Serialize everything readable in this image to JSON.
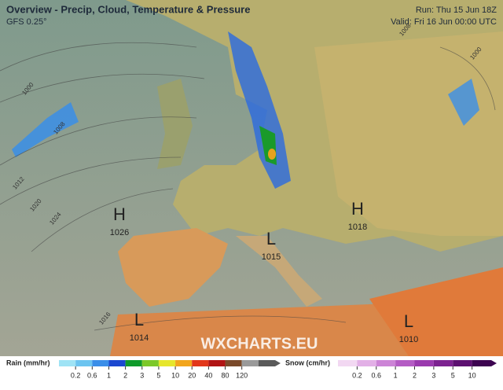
{
  "header": {
    "title": "Overview - Precip, Cloud, Temperature & Pressure",
    "model": "GFS 0.25°",
    "run": "Run: Thu 15 Jun 18Z",
    "valid": "Valid: Fri 16 Jun 00:00 UTC"
  },
  "pressure_centers": [
    {
      "label": "H",
      "value": 1026
    },
    {
      "label": "L",
      "value": 1015
    },
    {
      "label": "H",
      "value": 1018
    },
    {
      "label": "L",
      "value": 1014
    },
    {
      "label": "L",
      "value": 1010
    }
  ],
  "isobar_labels": [
    1000,
    1008,
    1012,
    1020,
    1024,
    1016,
    1000,
    1008
  ],
  "watermark": "WXCHARTS.EU",
  "legend": {
    "rain": {
      "title": "Rain (mm/hr)",
      "ticks": [
        0.2,
        0.6,
        1,
        2,
        3,
        5,
        10,
        20,
        40,
        80,
        120
      ],
      "colors": [
        "#9fe3f5",
        "#6cc4f0",
        "#3a8ee8",
        "#1b48d0",
        "#0f9a2a",
        "#7cc82a",
        "#e6e62c",
        "#f2a51c",
        "#e2371a",
        "#b01414",
        "#7a4a2a",
        "#9a9a9a",
        "#5a5a5a"
      ]
    },
    "snow": {
      "title": "Snow (cm/hr)",
      "ticks": [
        0.2,
        0.6,
        1,
        2,
        3,
        5,
        10
      ],
      "colors": [
        "#f2d8f2",
        "#e2b0e6",
        "#cc84d6",
        "#b45cc4",
        "#9a3aae",
        "#7c2290",
        "#5c1070",
        "#3c0450"
      ]
    }
  }
}
